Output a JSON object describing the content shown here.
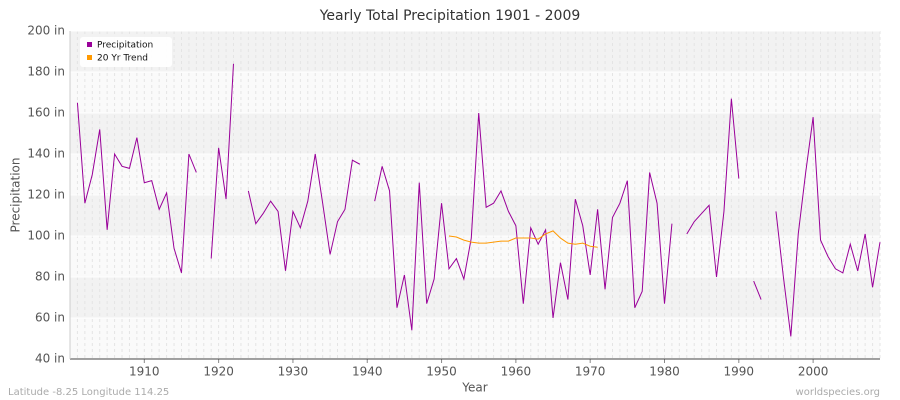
{
  "chart_data": {
    "type": "line",
    "title": "Yearly Total Precipitation 1901 - 2009",
    "x_label": "Year",
    "y_label": "Precipitation",
    "footer_left": "Latitude -8.25 Longitude 114.25",
    "footer_right": "worldspecies.org",
    "x": [
      1901,
      1902,
      1903,
      1904,
      1905,
      1906,
      1907,
      1908,
      1909,
      1910,
      1911,
      1912,
      1913,
      1914,
      1915,
      1916,
      1917,
      1918,
      1919,
      1920,
      1921,
      1922,
      1923,
      1924,
      1925,
      1926,
      1927,
      1928,
      1929,
      1930,
      1931,
      1932,
      1933,
      1934,
      1935,
      1936,
      1937,
      1938,
      1939,
      1940,
      1941,
      1942,
      1943,
      1944,
      1945,
      1946,
      1947,
      1948,
      1949,
      1950,
      1951,
      1952,
      1953,
      1954,
      1955,
      1956,
      1957,
      1958,
      1959,
      1960,
      1961,
      1962,
      1963,
      1964,
      1965,
      1966,
      1967,
      1968,
      1969,
      1970,
      1971,
      1972,
      1973,
      1974,
      1975,
      1976,
      1977,
      1978,
      1979,
      1980,
      1981,
      1982,
      1983,
      1984,
      1985,
      1986,
      1987,
      1988,
      1989,
      1990,
      1991,
      1992,
      1993,
      1994,
      1995,
      1996,
      1997,
      1998,
      1999,
      2000,
      2001,
      2002,
      2003,
      2004,
      2005,
      2006,
      2007,
      2008,
      2009
    ],
    "series": [
      {
        "name": "Precipitation",
        "color": "#990099",
        "values": [
          165,
          116,
          130,
          152,
          103,
          140,
          134,
          133,
          148,
          126,
          127,
          113,
          121,
          94,
          82,
          140,
          131,
          null,
          89,
          143,
          118,
          184,
          null,
          122,
          106,
          111,
          117,
          112,
          83,
          112,
          104,
          117,
          140,
          116,
          91,
          107,
          113,
          137,
          135,
          null,
          117,
          134,
          122,
          65,
          81,
          54,
          126,
          67,
          79,
          116,
          84,
          89,
          79,
          99,
          160,
          114,
          116,
          122,
          112,
          105,
          67,
          104,
          96,
          103,
          60,
          87,
          69,
          118,
          105,
          81,
          113,
          74,
          109,
          116,
          127,
          65,
          73,
          131,
          116,
          67,
          106,
          null,
          101,
          107,
          111,
          115,
          80,
          112,
          167,
          128,
          null,
          78,
          69,
          null,
          112,
          80,
          51,
          101,
          131,
          158,
          98,
          90,
          84,
          82,
          96,
          83,
          101,
          75,
          97
        ]
      },
      {
        "name": "20 Yr Trend",
        "color": "#ff9900",
        "values": [
          null,
          null,
          null,
          null,
          null,
          null,
          null,
          null,
          null,
          null,
          null,
          null,
          null,
          null,
          null,
          null,
          null,
          null,
          null,
          null,
          null,
          null,
          null,
          null,
          null,
          null,
          null,
          null,
          null,
          null,
          null,
          null,
          null,
          null,
          null,
          null,
          null,
          null,
          null,
          null,
          null,
          null,
          null,
          null,
          null,
          null,
          null,
          null,
          null,
          null,
          100,
          99.5,
          98,
          97,
          96.5,
          96.5,
          97,
          97.5,
          97.5,
          99,
          99,
          99,
          98.5,
          101,
          102.5,
          99,
          96.5,
          96,
          96.5,
          95,
          94.5,
          null,
          null,
          null,
          null,
          null,
          null,
          null,
          null,
          null,
          null,
          null,
          null,
          null,
          null,
          null,
          null,
          null,
          null,
          null,
          null,
          null,
          null,
          null,
          null,
          null,
          null,
          null,
          null,
          null,
          null,
          null,
          null,
          null,
          null,
          null,
          null,
          null,
          null
        ]
      }
    ],
    "xlim": [
      1900,
      2009
    ],
    "ylim": [
      40,
      200
    ],
    "xticks": [
      1910,
      1920,
      1930,
      1940,
      1950,
      1960,
      1970,
      1980,
      1990,
      2000
    ],
    "yticks": [
      {
        "value": 40,
        "label": "40 in"
      },
      {
        "value": 60,
        "label": "60 in"
      },
      {
        "value": 80,
        "label": "80 in"
      },
      {
        "value": 100,
        "label": "100 in"
      },
      {
        "value": 120,
        "label": "120 in"
      },
      {
        "value": 140,
        "label": "140 in"
      },
      {
        "value": 160,
        "label": "160 in"
      },
      {
        "value": 180,
        "label": "180 in"
      },
      {
        "value": 200,
        "label": "200 in"
      }
    ],
    "grid": true,
    "legend": "top-left"
  }
}
